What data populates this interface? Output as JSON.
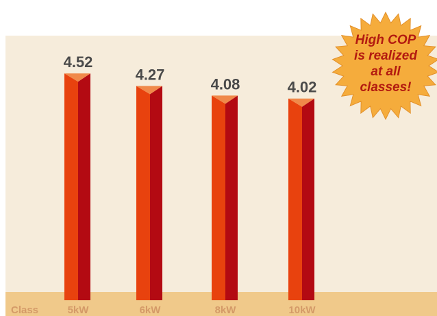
{
  "chart_data": {
    "type": "bar",
    "xlabel": "Class",
    "categories": [
      "5kW",
      "6kW",
      "8kW",
      "10kW"
    ],
    "values": [
      4.52,
      4.27,
      4.08,
      4.02
    ],
    "value_labels": [
      "4.52",
      "4.27",
      "4.08",
      "4.02"
    ],
    "ylim": [
      0,
      4.8
    ],
    "grid": false,
    "colors": {
      "background": "#f6ecdb",
      "axis_band": "#f0c98a",
      "bar_front": "#e8420e",
      "bar_side": "#b30a12",
      "bar_top": "#f0894a",
      "label": "#4a4a4a",
      "tick_label": "#d49a68",
      "badge_fill": "#f5ac3c",
      "badge_text": "#b31a10"
    }
  },
  "annotation": {
    "lines": [
      "High COP",
      "is realized",
      "at all",
      "classes!"
    ]
  }
}
